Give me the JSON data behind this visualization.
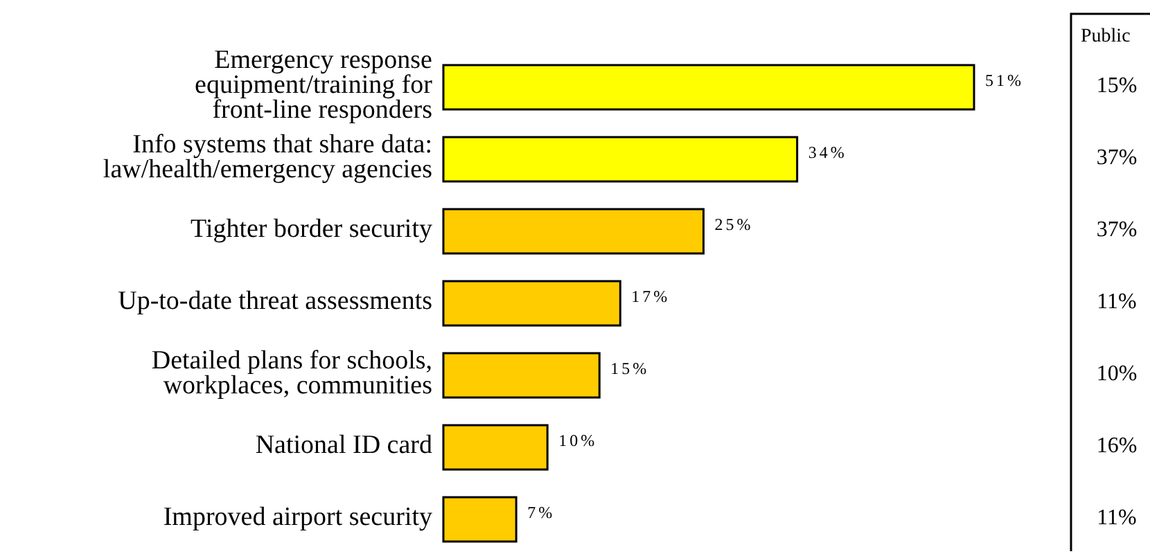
{
  "chart_data": [
    {
      "type": "bar",
      "orientation": "horizontal",
      "categories": [
        "Emergency response equipment/training for front-line responders",
        "Info systems that share data: law/health/emergency agencies",
        "Tighter border security",
        "Up-to-date threat assessments",
        "Detailed plans for schools, workplaces, communities",
        "National ID card",
        "Improved airport security"
      ],
      "values": [
        51,
        34,
        25,
        17,
        15,
        10,
        7
      ],
      "value_labels": [
        "51%",
        "34%",
        "25%",
        "17%",
        "15%",
        "10%",
        "7%"
      ],
      "colors": [
        "#ffff00",
        "#ffff00",
        "#ffcc00",
        "#ffcc00",
        "#ffcc00",
        "#ffcc00",
        "#ffcc00"
      ]
    },
    {
      "type": "other",
      "title": "Public",
      "value_labels": [
        "15%",
        "37%",
        "37%",
        "11%",
        "10%",
        "16%",
        "11%"
      ]
    }
  ]
}
